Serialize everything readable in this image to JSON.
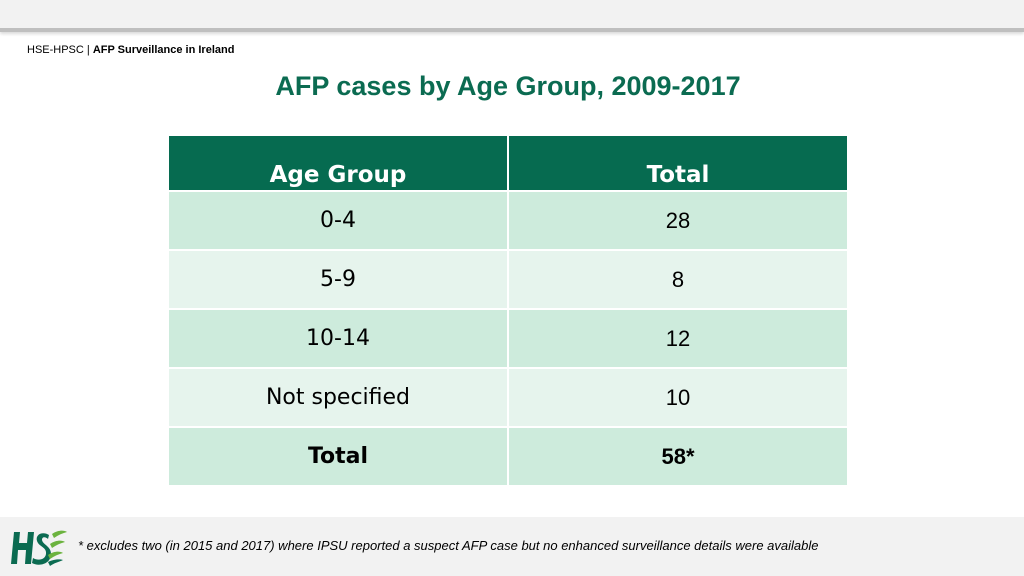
{
  "header": {
    "org": "HSE-HPSC | ",
    "subtitle": "AFP Surveillance in Ireland"
  },
  "title": "AFP cases by Age Group, 2009-2017",
  "table": {
    "columns": [
      "Age Group",
      "Total"
    ],
    "rows": [
      {
        "age_group": "0-4",
        "total": "28"
      },
      {
        "age_group": "5-9",
        "total": "8"
      },
      {
        "age_group": "10-14",
        "total": "12"
      },
      {
        "age_group": "Not specified",
        "total": "10"
      },
      {
        "age_group": "Total",
        "total": "58*"
      }
    ]
  },
  "footnote": "* excludes two (in 2015 and 2017) where IPSU reported a suspect AFP case but no enhanced surveillance details were available",
  "logo": {
    "icon": "hse-logo-icon",
    "color": "#0b6b51",
    "accent": "#6cb33f"
  },
  "colors": {
    "title": "#0b6b51",
    "header_bg": "#066b50",
    "row_dark": "#cdebdc",
    "row_light": "#e6f4ed"
  }
}
